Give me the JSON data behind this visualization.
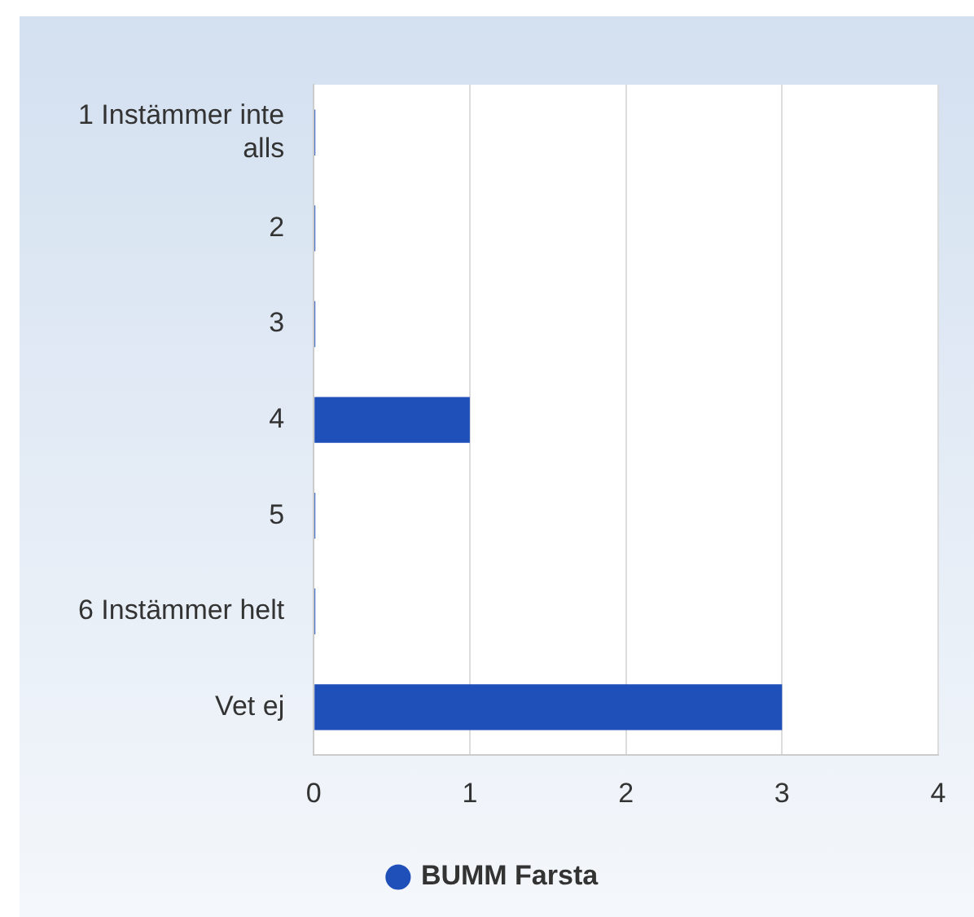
{
  "chart_data": {
    "type": "bar",
    "orientation": "horizontal",
    "categories": [
      "1 Instämmer inte alls",
      "2",
      "3",
      "4",
      "5",
      "6 Instämmer helt",
      "Vet ej"
    ],
    "series": [
      {
        "name": "BUMM Farsta",
        "color": "#1f4fb8",
        "values": [
          0,
          0,
          0,
          1,
          0,
          0,
          3
        ]
      }
    ],
    "xlim": [
      0,
      4
    ],
    "xticks": [
      0,
      1,
      2,
      3,
      4
    ],
    "grid": "x",
    "legend": "bottom"
  }
}
